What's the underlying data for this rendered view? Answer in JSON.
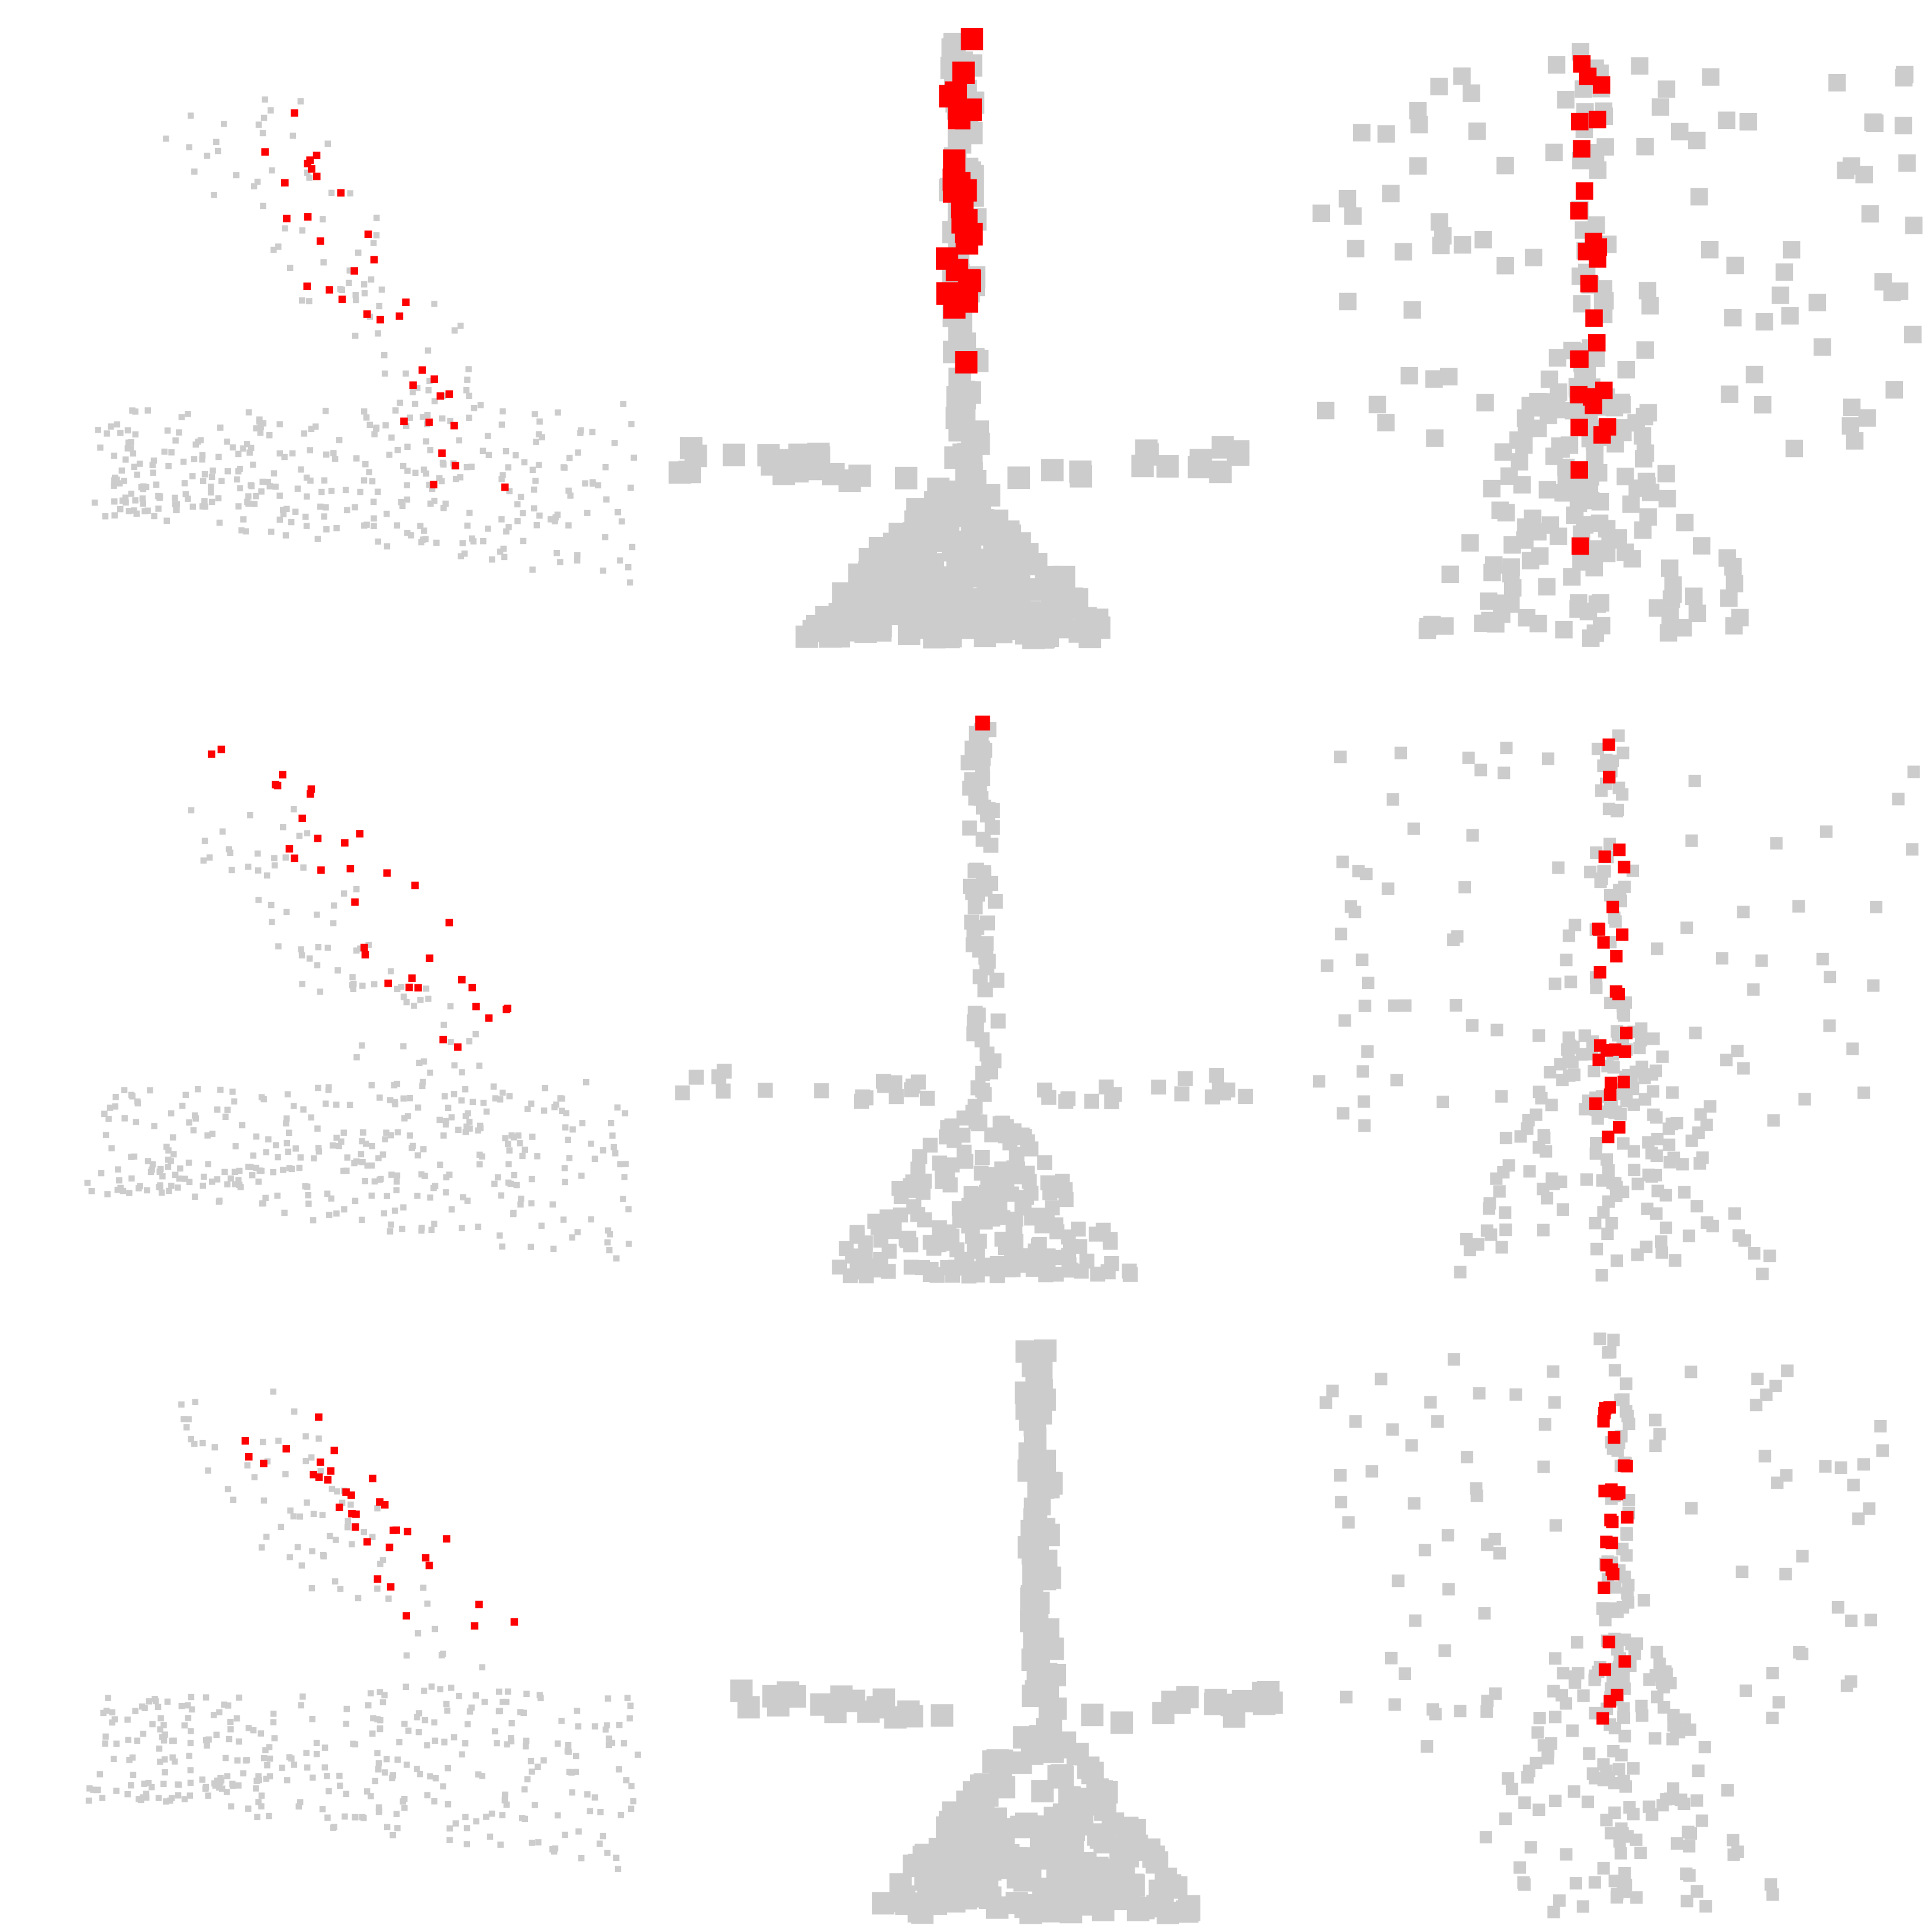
{
  "figure": {
    "panel_count": 9,
    "colors": {
      "background": "#ffffff",
      "context_point": "#cccccc",
      "highlight_point": "#ff0000"
    }
  }
}
